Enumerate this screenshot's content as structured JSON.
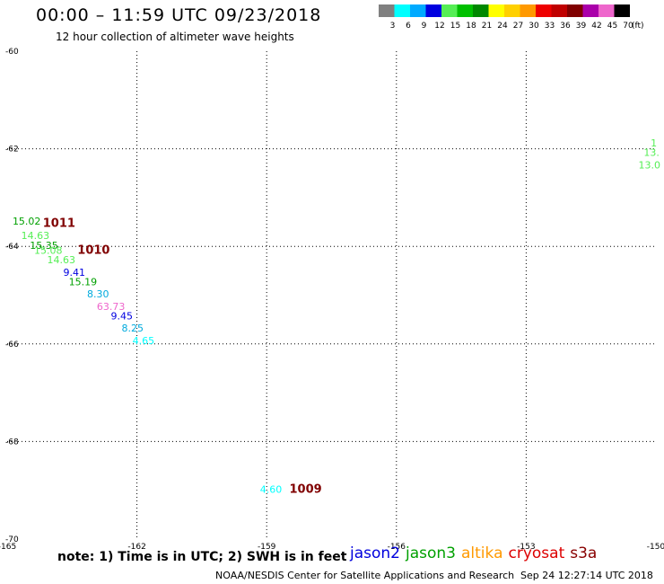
{
  "header": {
    "title": "00:00 – 11:59 UTC 09/23/2018",
    "subtitle": "12 hour collection of altimeter wave heights"
  },
  "legend": {
    "unit": "(ft)",
    "bins": [
      {
        "label": "3",
        "color": "#808080"
      },
      {
        "label": "6",
        "color": "#00ffff"
      },
      {
        "label": "9",
        "color": "#00aaff"
      },
      {
        "label": "12",
        "color": "#0000e0"
      },
      {
        "label": "15",
        "color": "#55ee55"
      },
      {
        "label": "18",
        "color": "#00c000"
      },
      {
        "label": "21",
        "color": "#008800"
      },
      {
        "label": "24",
        "color": "#ffff00"
      },
      {
        "label": "27",
        "color": "#ffd000"
      },
      {
        "label": "30",
        "color": "#ff9900"
      },
      {
        "label": "33",
        "color": "#ee0000"
      },
      {
        "label": "36",
        "color": "#c00000"
      },
      {
        "label": "39",
        "color": "#800000"
      },
      {
        "label": "42",
        "color": "#aa00aa"
      },
      {
        "label": "45",
        "color": "#ee66cc"
      },
      {
        "label": "70",
        "color": "#000000"
      }
    ]
  },
  "chart_data": {
    "type": "scatter",
    "x_ticks": [
      "-165",
      "-162",
      "-159",
      "-156",
      "-153",
      "-150"
    ],
    "y_ticks": [
      "-60",
      "-62",
      "-64",
      "-66",
      "-68",
      "-70"
    ],
    "xlim": [
      -165,
      -150
    ],
    "ylim": [
      -70,
      -60
    ],
    "grid": true,
    "wave_heights": [
      {
        "text": "15.02",
        "lon": -164.55,
        "lat": -63.55,
        "color": "#00a000"
      },
      {
        "text": "14.63",
        "lon": -164.35,
        "lat": -63.85,
        "color": "#55ee55"
      },
      {
        "text": "15.35",
        "lon": -164.15,
        "lat": -64.05,
        "color": "#00a000"
      },
      {
        "text": "15.08",
        "lon": -164.05,
        "lat": -64.15,
        "color": "#55ee55"
      },
      {
        "text": "14.63",
        "lon": -163.75,
        "lat": -64.35,
        "color": "#55ee55"
      },
      {
        "text": "9.41",
        "lon": -163.45,
        "lat": -64.6,
        "color": "#0000e0"
      },
      {
        "text": "15.19",
        "lon": -163.25,
        "lat": -64.8,
        "color": "#00a000"
      },
      {
        "text": "8.30",
        "lon": -162.9,
        "lat": -65.05,
        "color": "#00aadd"
      },
      {
        "text": "63.73",
        "lon": -162.6,
        "lat": -65.3,
        "color": "#ee66cc"
      },
      {
        "text": "9.45",
        "lon": -162.35,
        "lat": -65.5,
        "color": "#0000e0"
      },
      {
        "text": "8.25",
        "lon": -162.1,
        "lat": -65.75,
        "color": "#00aadd"
      },
      {
        "text": "4.65",
        "lon": -161.85,
        "lat": -66.0,
        "color": "#00ffff"
      },
      {
        "text": "4.60",
        "lon": -158.9,
        "lat": -69.05,
        "color": "#00ffff"
      },
      {
        "text": "1",
        "lon": -150.05,
        "lat": -61.95,
        "color": "#55ee55"
      },
      {
        "text": "13.",
        "lon": -150.1,
        "lat": -62.15,
        "color": "#55ee55"
      },
      {
        "text": "13.0",
        "lon": -150.15,
        "lat": -62.4,
        "color": "#55ee55"
      }
    ],
    "pressure_labels": [
      {
        "text": "1011",
        "lon": -163.8,
        "lat": -63.6,
        "color": "#800000"
      },
      {
        "text": "1010",
        "lon": -163.0,
        "lat": -64.15,
        "color": "#800000"
      },
      {
        "text": "1009",
        "lon": -158.1,
        "lat": -69.05,
        "color": "#800000"
      }
    ]
  },
  "footer": {
    "note": "note:  1) Time is in UTC;  2) SWH is in feet",
    "satellites": [
      {
        "name": "jason2",
        "color": "#0000dd"
      },
      {
        "name": "jason3",
        "color": "#00a000"
      },
      {
        "name": "altika",
        "color": "#ff9900"
      },
      {
        "name": "cryosat",
        "color": "#dd0000"
      },
      {
        "name": "s3a",
        "color": "#880000"
      }
    ],
    "credit": "NOAA/NESDIS Center for Satellite Applications and Research",
    "timestamp": "Sep 24 12:27:14 UTC 2018"
  }
}
